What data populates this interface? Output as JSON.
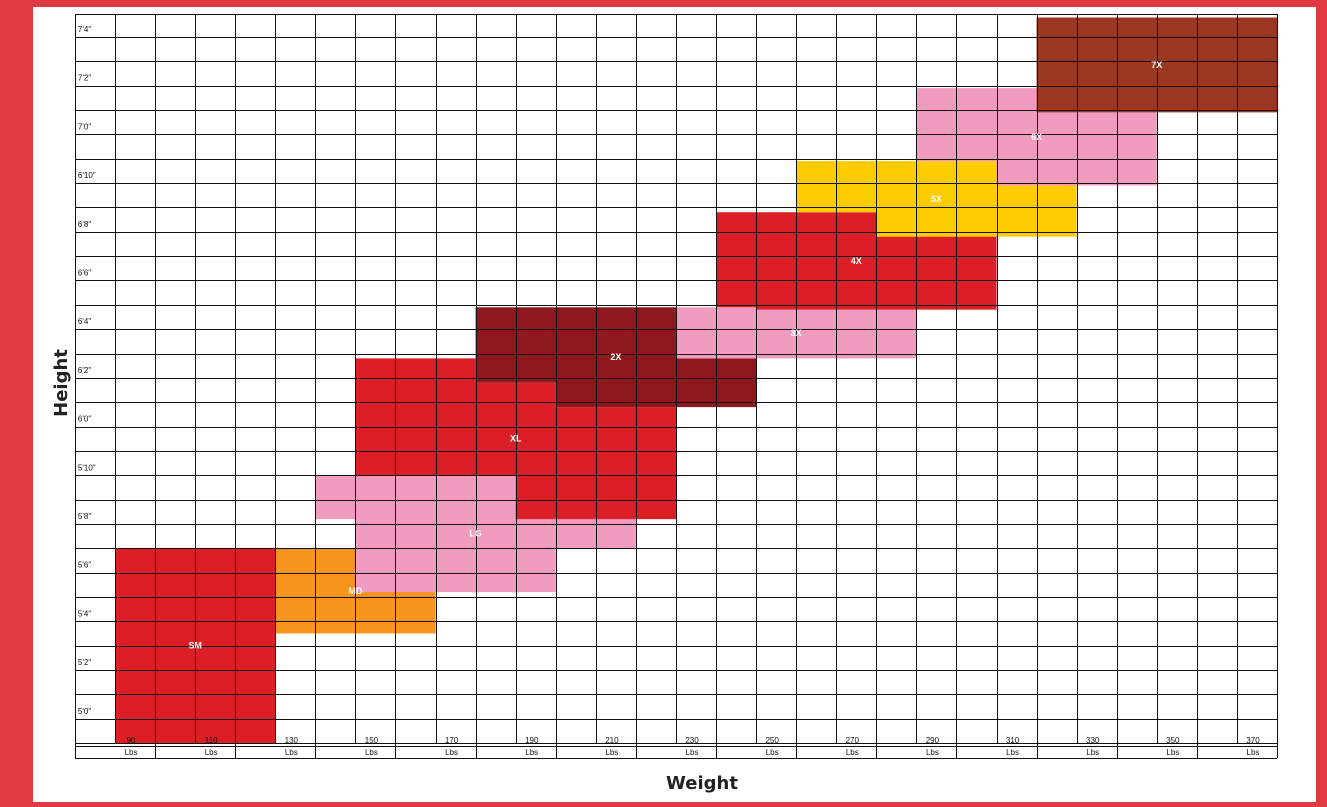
{
  "chart_data": {
    "type": "heatmap",
    "title": "",
    "xlabel": "Weight",
    "ylabel": "Height",
    "x_unit": "Lbs",
    "x_ticks": [
      90,
      110,
      130,
      150,
      170,
      190,
      210,
      230,
      250,
      270,
      290,
      310,
      330,
      350,
      370
    ],
    "x_range_lbs": [
      80,
      380
    ],
    "y_tick_labels": [
      "5'0\"",
      "5'2\"",
      "5'4\"",
      "5'6\"",
      "5'8\"",
      "5'10\"",
      "6'0\"",
      "6'2\"",
      "6'4\"",
      "6'6\"",
      "6'8\"",
      "6'10\"",
      "7'0\"",
      "7'2\"",
      "7'4\""
    ],
    "y_ticks_in": [
      60,
      62,
      64,
      66,
      68,
      70,
      72,
      74,
      76,
      78,
      80,
      82,
      84,
      86,
      88
    ],
    "y_range_in": [
      59,
      88.5
    ],
    "grid": true,
    "regions": [
      {
        "label": "SM",
        "color": "#dc1f26",
        "polygon": [
          [
            90,
            59
          ],
          [
            130,
            59
          ],
          [
            130,
            67
          ],
          [
            90,
            67
          ]
        ]
      },
      {
        "label": "MD",
        "color": "#f7941d",
        "polygon": [
          [
            130,
            63.5
          ],
          [
            170,
            63.5
          ],
          [
            170,
            65.8
          ],
          [
            150,
            65.8
          ],
          [
            150,
            67
          ],
          [
            130,
            67
          ]
        ]
      },
      {
        "label": "LG",
        "color": "#f29bc1",
        "polygon": [
          [
            150,
            65.2
          ],
          [
            200,
            65.2
          ],
          [
            200,
            67
          ],
          [
            220,
            67
          ],
          [
            220,
            69
          ],
          [
            190,
            69
          ],
          [
            190,
            70
          ],
          [
            140,
            70
          ],
          [
            140,
            68.2
          ],
          [
            150,
            68.2
          ]
        ]
      },
      {
        "label": "XL",
        "color": "#dc1f26",
        "polygon": [
          [
            150,
            70
          ],
          [
            190,
            70
          ],
          [
            190,
            68.2
          ],
          [
            230,
            68.2
          ],
          [
            230,
            72.8
          ],
          [
            200,
            72.8
          ],
          [
            200,
            73.8
          ],
          [
            180,
            73.8
          ],
          [
            180,
            74.8
          ],
          [
            150,
            74.8
          ]
        ]
      },
      {
        "label": "2X",
        "color": "#8e181d",
        "polygon": [
          [
            180,
            73.8
          ],
          [
            200,
            73.8
          ],
          [
            200,
            72.8
          ],
          [
            250,
            72.8
          ],
          [
            250,
            74.8
          ],
          [
            230,
            74.8
          ],
          [
            230,
            76.9
          ],
          [
            180,
            76.9
          ]
        ]
      },
      {
        "label": "3X",
        "color": "#f29bc1",
        "polygon": [
          [
            230,
            74.8
          ],
          [
            290,
            74.8
          ],
          [
            290,
            76.8
          ],
          [
            250,
            76.8
          ],
          [
            250,
            76.9
          ],
          [
            230,
            76.9
          ]
        ]
      },
      {
        "label": "4X",
        "color": "#dc1f26",
        "polygon": [
          [
            240,
            76.9
          ],
          [
            250,
            76.9
          ],
          [
            250,
            76.8
          ],
          [
            310,
            76.8
          ],
          [
            310,
            79.8
          ],
          [
            280,
            79.8
          ],
          [
            280,
            80.8
          ],
          [
            240,
            80.8
          ]
        ]
      },
      {
        "label": "5X",
        "color": "#ffcc00",
        "polygon": [
          [
            260,
            80.8
          ],
          [
            280,
            80.8
          ],
          [
            280,
            79.8
          ],
          [
            330,
            79.8
          ],
          [
            330,
            81.9
          ],
          [
            310,
            81.9
          ],
          [
            310,
            82.9
          ],
          [
            260,
            82.9
          ]
        ]
      },
      {
        "label": "6X",
        "color": "#f29bc1",
        "polygon": [
          [
            290,
            82.9
          ],
          [
            310,
            82.9
          ],
          [
            310,
            81.9
          ],
          [
            350,
            81.9
          ],
          [
            350,
            84.9
          ],
          [
            330,
            84.9
          ],
          [
            330,
            85.9
          ],
          [
            290,
            85.9
          ]
        ]
      },
      {
        "label": "7X",
        "color": "#9a3720",
        "polygon": [
          [
            320,
            84.9
          ],
          [
            380,
            84.9
          ],
          [
            380,
            88.8
          ],
          [
            320,
            88.8
          ]
        ]
      }
    ]
  }
}
